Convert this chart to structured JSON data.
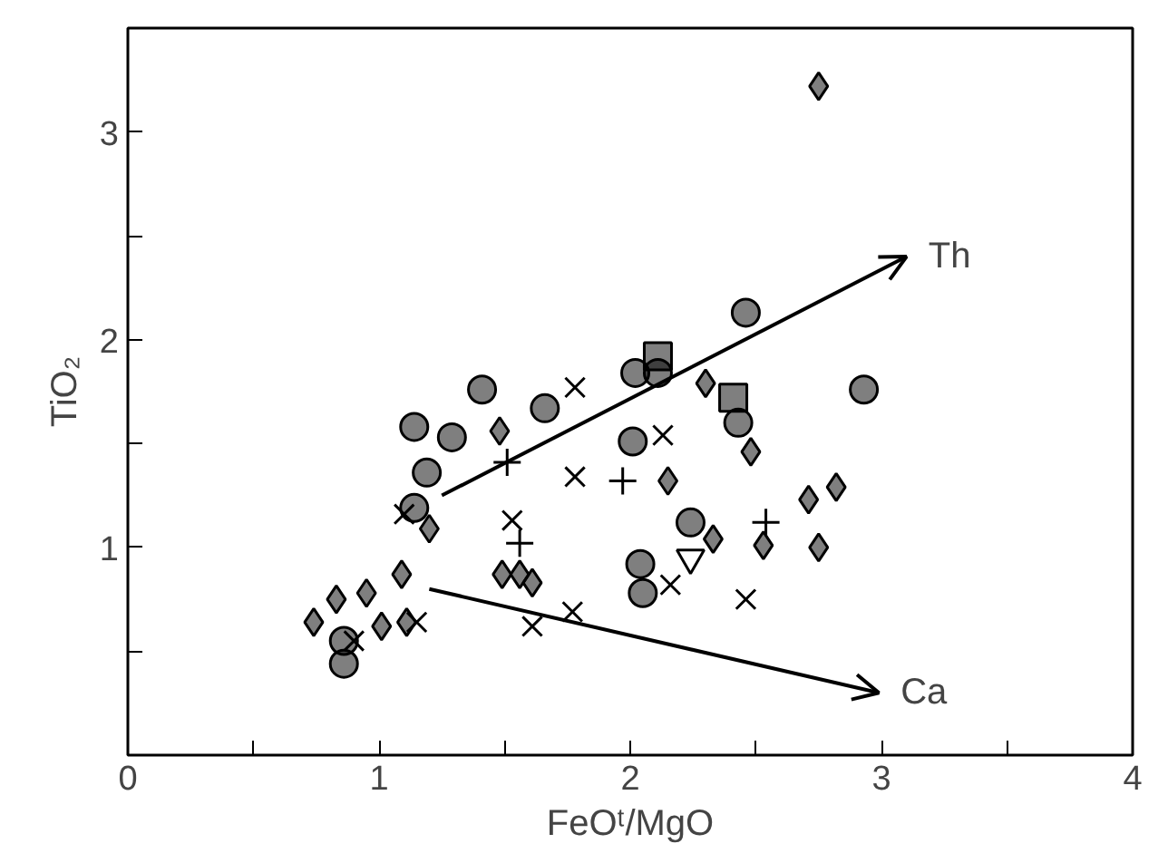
{
  "chart_data": {
    "type": "scatter",
    "xlabel": "FeOᵗ/MgO",
    "ylabel": "TiO₂",
    "xlim": [
      0,
      4
    ],
    "ylim": [
      0,
      3.5
    ],
    "xticks": [
      0,
      {
        "value": 0.5,
        "label": null
      },
      1,
      {
        "value": 1.5,
        "label": null
      },
      2,
      {
        "value": 2.5,
        "label": null
      },
      3,
      {
        "value": 3.5,
        "label": null
      },
      4
    ],
    "yticks": [
      {
        "value": 0,
        "label": null
      },
      {
        "value": 0.5,
        "label": null
      },
      1,
      {
        "value": 1.5,
        "label": null
      },
      2,
      {
        "value": 2.5,
        "label": null
      },
      3
    ],
    "grid": false,
    "series": [
      {
        "color": "#000000",
        "marker": "circle",
        "x": [
          1.14,
          1.29,
          1.41,
          1.19,
          1.14,
          1.66,
          2.01,
          2.46,
          2.02,
          2.11,
          2.93,
          2.43,
          2.24
        ],
        "values": [
          1.58,
          1.53,
          1.76,
          1.36,
          1.19,
          1.67,
          1.51,
          2.13,
          1.84,
          1.84,
          1.76,
          1.6,
          1.12
        ]
      },
      {
        "color": "#000000",
        "marker": "diamond",
        "x": [
          0.74,
          0.83,
          0.95,
          1.01,
          1.09,
          1.11,
          1.2,
          1.48,
          1.49,
          1.56,
          1.61,
          2.15,
          2.3,
          2.48,
          2.33,
          2.53,
          2.71,
          2.82,
          2.75,
          2.75
        ],
        "values": [
          0.64,
          0.75,
          0.78,
          0.62,
          0.87,
          0.64,
          1.09,
          1.56,
          0.87,
          0.87,
          0.83,
          1.32,
          1.79,
          1.46,
          1.04,
          1.01,
          1.23,
          1.29,
          1.0,
          3.22
        ]
      },
      {
        "color": "#000000",
        "marker": "x",
        "x": [
          1.78,
          2.13,
          1.78,
          1.53,
          1.1,
          1.15,
          1.61,
          1.77,
          2.16,
          2.46,
          0.9
        ],
        "values": [
          1.77,
          1.54,
          1.34,
          1.13,
          1.16,
          0.64,
          0.62,
          0.69,
          0.82,
          0.75,
          0.55
        ]
      },
      {
        "color": "#000000",
        "marker": "cross",
        "x": [
          1.51,
          1.97,
          1.56,
          2.54
        ],
        "values": [
          1.41,
          1.32,
          1.02,
          1.12
        ]
      },
      {
        "color": "#000000",
        "marker": "square",
        "x": [
          2.11,
          2.41
        ],
        "values": [
          1.92,
          1.72
        ]
      },
      {
        "color": "#000000",
        "marker": "triangle",
        "x": [
          2.24
        ],
        "values": [
          0.95
        ]
      },
      {
        "color": "#000000",
        "marker": "circle",
        "x": [
          0.86,
          0.86,
          2.04,
          2.05
        ],
        "values": [
          0.55,
          0.44,
          0.92,
          0.78
        ]
      },
      {
        "type": "line",
        "color": "#000000",
        "x": [
          1.25,
          3.1
        ],
        "values": [
          1.25,
          2.4
        ]
      },
      {
        "type": "line",
        "color": "#000000",
        "x": [
          1.2,
          2.99
        ],
        "values": [
          0.8,
          0.3
        ]
      }
    ],
    "annotations": [
      "Th",
      "Ca"
    ]
  }
}
